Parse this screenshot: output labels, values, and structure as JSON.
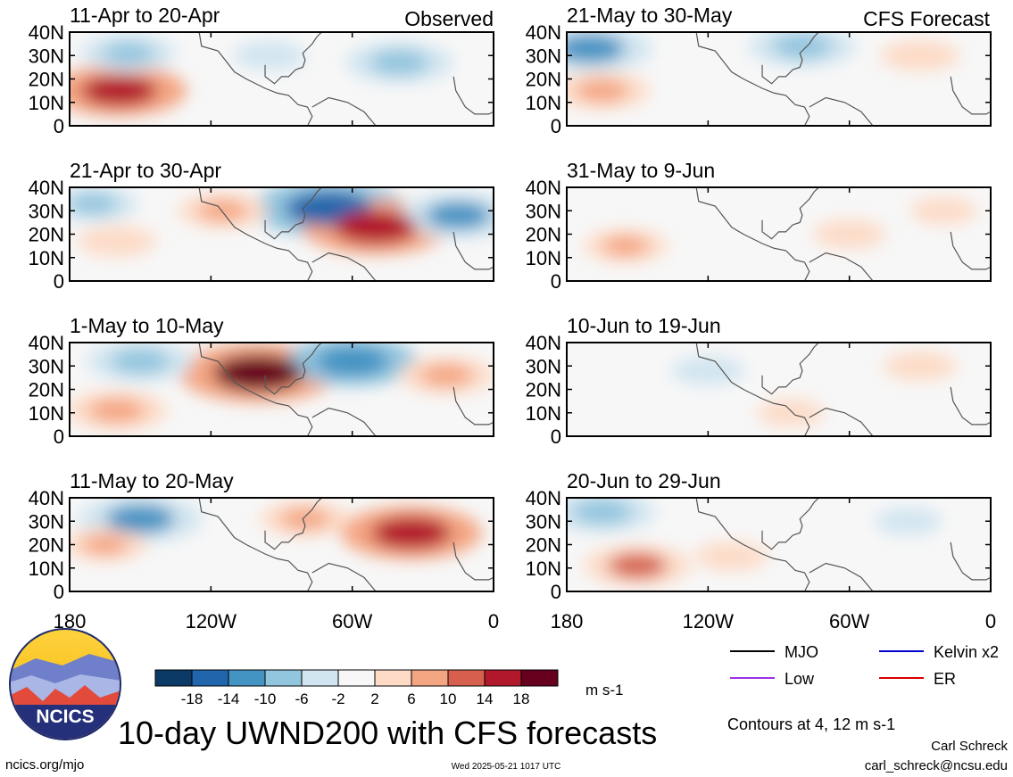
{
  "chart_data": {
    "type": "heatmap",
    "title": "10-day UWND200 with CFS forecasts",
    "units": "m s-1",
    "x_ticks": [
      "180",
      "120W",
      "60W",
      "0"
    ],
    "y_ticks": [
      "40N",
      "30N",
      "20N",
      "10N",
      "0"
    ],
    "column_labels": {
      "left": "Observed",
      "right": "CFS Forecast"
    },
    "panels": [
      {
        "label": "11-Apr to 20-Apr",
        "kind": "observed",
        "anomalies": [
          {
            "lon": -159,
            "lat": 15,
            "value": 15
          },
          {
            "lon": -155,
            "lat": 31,
            "value": -8
          },
          {
            "lon": -40,
            "lat": 27,
            "value": -10
          },
          {
            "lon": -95,
            "lat": 30,
            "value": -4
          }
        ]
      },
      {
        "label": "21-Apr to 30-Apr",
        "kind": "observed",
        "anomalies": [
          {
            "lon": -70,
            "lat": 31,
            "value": -18
          },
          {
            "lon": -50,
            "lat": 23,
            "value": 17
          },
          {
            "lon": -15,
            "lat": 28,
            "value": -12
          },
          {
            "lon": -170,
            "lat": 33,
            "value": -7
          },
          {
            "lon": -115,
            "lat": 30,
            "value": 7
          },
          {
            "lon": -160,
            "lat": 17,
            "value": 5
          }
        ]
      },
      {
        "label": "1-May to 10-May",
        "kind": "observed",
        "anomalies": [
          {
            "lon": -100,
            "lat": 27,
            "value": 19
          },
          {
            "lon": -60,
            "lat": 32,
            "value": -14
          },
          {
            "lon": -150,
            "lat": 32,
            "value": -10
          },
          {
            "lon": -160,
            "lat": 11,
            "value": 9
          },
          {
            "lon": -20,
            "lat": 26,
            "value": 8
          }
        ]
      },
      {
        "label": "11-May to 20-May",
        "kind": "observed",
        "anomalies": [
          {
            "lon": -35,
            "lat": 25,
            "value": 16
          },
          {
            "lon": -150,
            "lat": 31,
            "value": -13
          },
          {
            "lon": -165,
            "lat": 20,
            "value": 6
          },
          {
            "lon": -80,
            "lat": 31,
            "value": 7
          }
        ]
      },
      {
        "label": "21-May to 30-May",
        "kind": "forecast",
        "anomalies": [
          {
            "lon": -170,
            "lat": 33,
            "value": -13
          },
          {
            "lon": -80,
            "lat": 34,
            "value": -10
          },
          {
            "lon": -165,
            "lat": 15,
            "value": 8
          },
          {
            "lon": -30,
            "lat": 30,
            "value": 5
          }
        ]
      },
      {
        "label": "31-May to 9-Jun",
        "kind": "forecast",
        "anomalies": [
          {
            "lon": -155,
            "lat": 15,
            "value": 6
          },
          {
            "lon": -60,
            "lat": 20,
            "value": 4
          },
          {
            "lon": -20,
            "lat": 30,
            "value": 3
          }
        ]
      },
      {
        "label": "10-Jun to 19-Jun",
        "kind": "forecast",
        "anomalies": [
          {
            "lon": -120,
            "lat": 28,
            "value": -4
          },
          {
            "lon": -30,
            "lat": 30,
            "value": 4
          },
          {
            "lon": -85,
            "lat": 10,
            "value": 3
          }
        ]
      },
      {
        "label": "20-Jun to 29-Jun",
        "kind": "forecast",
        "anomalies": [
          {
            "lon": -165,
            "lat": 34,
            "value": -10
          },
          {
            "lon": -150,
            "lat": 11,
            "value": 10
          },
          {
            "lon": -110,
            "lat": 15,
            "value": 4
          },
          {
            "lon": -35,
            "lat": 30,
            "value": -3
          }
        ]
      }
    ],
    "colorbar": {
      "ticks": [
        "-18",
        "-14",
        "-10",
        "-6",
        "-2",
        "2",
        "6",
        "10",
        "14",
        "18"
      ],
      "colors": [
        "#0b3a66",
        "#2166ac",
        "#4393c3",
        "#92c5de",
        "#d1e5f0",
        "#f7f7f7",
        "#fddbc7",
        "#f4a582",
        "#d6604d",
        "#b2182b",
        "#67001f"
      ]
    },
    "legend": [
      {
        "label": "MJO",
        "color": "#000000"
      },
      {
        "label": "Kelvin x2",
        "color": "#0000cc"
      },
      {
        "label": "Low",
        "color": "#9b30e6"
      },
      {
        "label": "ER",
        "color": "#dd0000"
      }
    ],
    "contour_note": "Contours at 4, 12 m s-1"
  },
  "footer": {
    "logo_text": "NCICS",
    "url": "ncics.org/mjo",
    "timestamp": "Wed 2025-05-21 1017 UTC",
    "author": "Carl Schreck",
    "email": "carl_schreck@ncsu.edu"
  }
}
